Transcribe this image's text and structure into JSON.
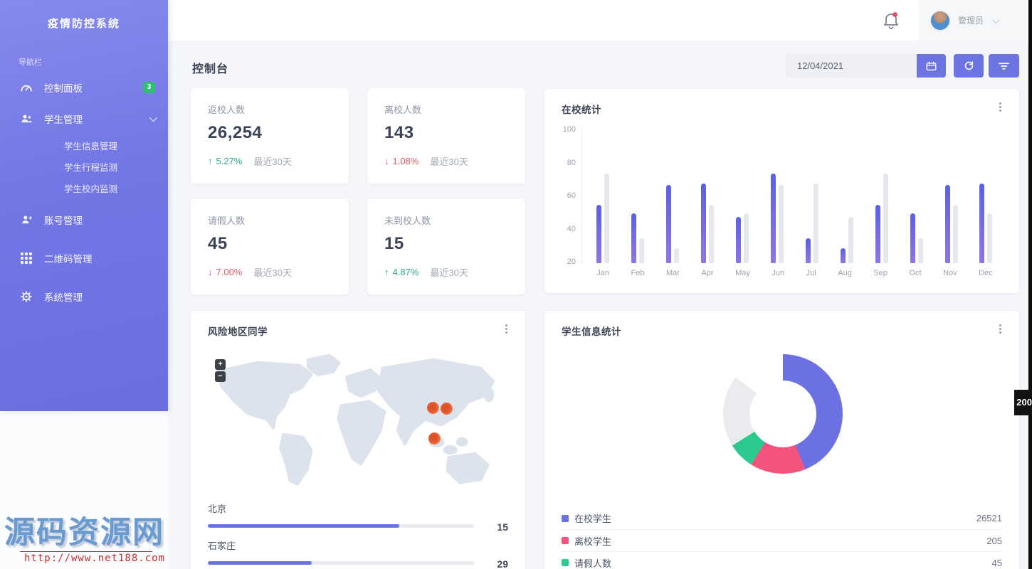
{
  "app": {
    "title": "疫情防控系统"
  },
  "sidebar": {
    "section_label": "导航栏",
    "items": [
      {
        "label": "控制面板",
        "icon": "gauge-icon",
        "badge": "3"
      },
      {
        "label": "学生管理",
        "icon": "students-icon",
        "expanded": true,
        "children": [
          "学生信息管理",
          "学生行程监测",
          "学生校内监测"
        ]
      },
      {
        "label": "账号管理",
        "icon": "account-icon"
      },
      {
        "label": "二维码管理",
        "icon": "qrcode-icon"
      },
      {
        "label": "系统管理",
        "icon": "gear-icon"
      }
    ]
  },
  "header": {
    "user_name": "管理员"
  },
  "toolbar": {
    "date_value": "12/04/2021"
  },
  "page": {
    "title": "控制台"
  },
  "stat_cards": [
    {
      "label": "返校人数",
      "value": "26,254",
      "arrow": "↑",
      "delta": "5.27%",
      "direction": "up",
      "period": "最近30天"
    },
    {
      "label": "离校人数",
      "value": "143",
      "arrow": "↓",
      "delta": "1.08%",
      "direction": "down",
      "period": "最近30天"
    },
    {
      "label": "请假人数",
      "value": "45",
      "arrow": "↓",
      "delta": "7.00%",
      "direction": "down",
      "period": "最近30天"
    },
    {
      "label": "未到校人数",
      "value": "15",
      "arrow": "↑",
      "delta": "4.87%",
      "direction": "up",
      "period": "最近30天"
    }
  ],
  "chart_data": [
    {
      "type": "bar",
      "title": "在校统计",
      "categories": [
        "Jan",
        "Feb",
        "Mar",
        "Apr",
        "May",
        "Jun",
        "Jul",
        "Aug",
        "Sep",
        "Oct",
        "Nov",
        "Dec"
      ],
      "series": [
        {
          "name": "primary",
          "color": "#6a6fe2",
          "values": [
            55,
            50,
            67,
            68,
            48,
            74,
            35,
            29,
            55,
            50,
            67,
            68
          ]
        },
        {
          "name": "secondary",
          "color": "#e4e7ec",
          "values": [
            74,
            35,
            29,
            55,
            50,
            67,
            68,
            48,
            74,
            35,
            55,
            50
          ]
        }
      ],
      "ylim": [
        20,
        100
      ],
      "yticks": [
        20,
        40,
        60,
        80,
        100
      ],
      "grid": false,
      "legend": "none"
    },
    {
      "type": "donut",
      "title": "学生信息统计",
      "slices": [
        {
          "label": "在校学生",
          "value": 26521,
          "color": "#6b70e2"
        },
        {
          "label": "离校学生",
          "value": 205,
          "color": "#f2547d"
        },
        {
          "label": "请假人数",
          "value": 45,
          "color": "#2cc98f"
        }
      ],
      "display_segments": [
        {
          "color": "#6b70e2",
          "from_deg": 0,
          "to_deg": 158
        },
        {
          "color": "#f2547d",
          "from_deg": 158,
          "to_deg": 212
        },
        {
          "color": "#2cc98f",
          "from_deg": 212,
          "to_deg": 238
        },
        {
          "color": "#e9ebee",
          "from_deg": 238,
          "to_deg": 308
        }
      ],
      "legend_position": "bottom"
    },
    {
      "type": "bar",
      "subtype": "horizontal-progress",
      "title": "风险地区同学",
      "items": [
        {
          "label": "北京",
          "value": 15,
          "percent": 72
        },
        {
          "label": "石家庄",
          "value": 29,
          "percent": 39
        }
      ]
    }
  ],
  "map_card": {
    "zoom_in_label": "+",
    "zoom_out_label": "−",
    "marker_count": 3
  },
  "side_badge": {
    "value": "200"
  },
  "watermark": {
    "site_name": "源码资源网",
    "url": "http://www.net188.com"
  },
  "icons": {
    "gauge-icon": "speedometer",
    "students-icon": "person-group",
    "account-icon": "person",
    "qrcode-icon": "grid-dots",
    "gear-icon": "gear",
    "bell-icon": "bell",
    "calendar-icon": "calendar",
    "refresh-icon": "circular-arrows",
    "filter-icon": "funnel-lines",
    "kebab-icon": "vertical-dots",
    "chevron-down-icon": "chevron-down"
  },
  "colors": {
    "sidebar": "#7276e5",
    "accent": "#6b74e1",
    "positive": "#2ba58e",
    "negative": "#dd5a66",
    "bar_primary": "#6a6fe2",
    "bar_secondary": "#e4e7ec",
    "donut_purple": "#6b70e2",
    "donut_pink": "#f2547d",
    "donut_green": "#2cc98f",
    "donut_gray": "#e9ebee",
    "marker_orange": "#e2582e",
    "badge_green": "#2ec06f"
  }
}
